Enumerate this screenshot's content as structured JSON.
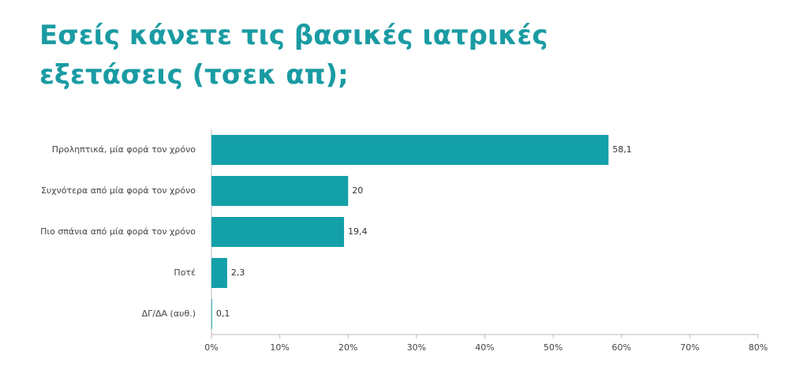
{
  "chart_data": {
    "type": "bar",
    "orientation": "horizontal",
    "title": "Εσείς κάνετε τις βασικές ιατρικές εξετάσεις (τσεκ απ);",
    "categories": [
      "Προληπτικά, μία φορά τον χρόνο",
      "Συχνότερα από μία φορά τον χρόνο",
      "Πιο σπάνια από μία φορά τον χρόνο",
      "Ποτέ",
      "ΔΓ/ΔΑ (αυθ.)"
    ],
    "values": [
      58.1,
      20,
      19.4,
      2.3,
      0.1
    ],
    "value_labels": [
      "58,1",
      "20",
      "19,4",
      "2,3",
      "0,1"
    ],
    "color": "#14a0a8",
    "xlim": [
      0,
      80
    ],
    "xticks": [
      {
        "value": 0,
        "label": "0%"
      },
      {
        "value": 10,
        "label": "10%"
      },
      {
        "value": 20,
        "label": "20%"
      },
      {
        "value": 30,
        "label": "30%"
      },
      {
        "value": 40,
        "label": "40%"
      },
      {
        "value": 50,
        "label": "50%"
      },
      {
        "value": 60,
        "label": "60%"
      },
      {
        "value": 70,
        "label": "70%"
      },
      {
        "value": 80,
        "label": "80%"
      }
    ],
    "grid": false
  }
}
